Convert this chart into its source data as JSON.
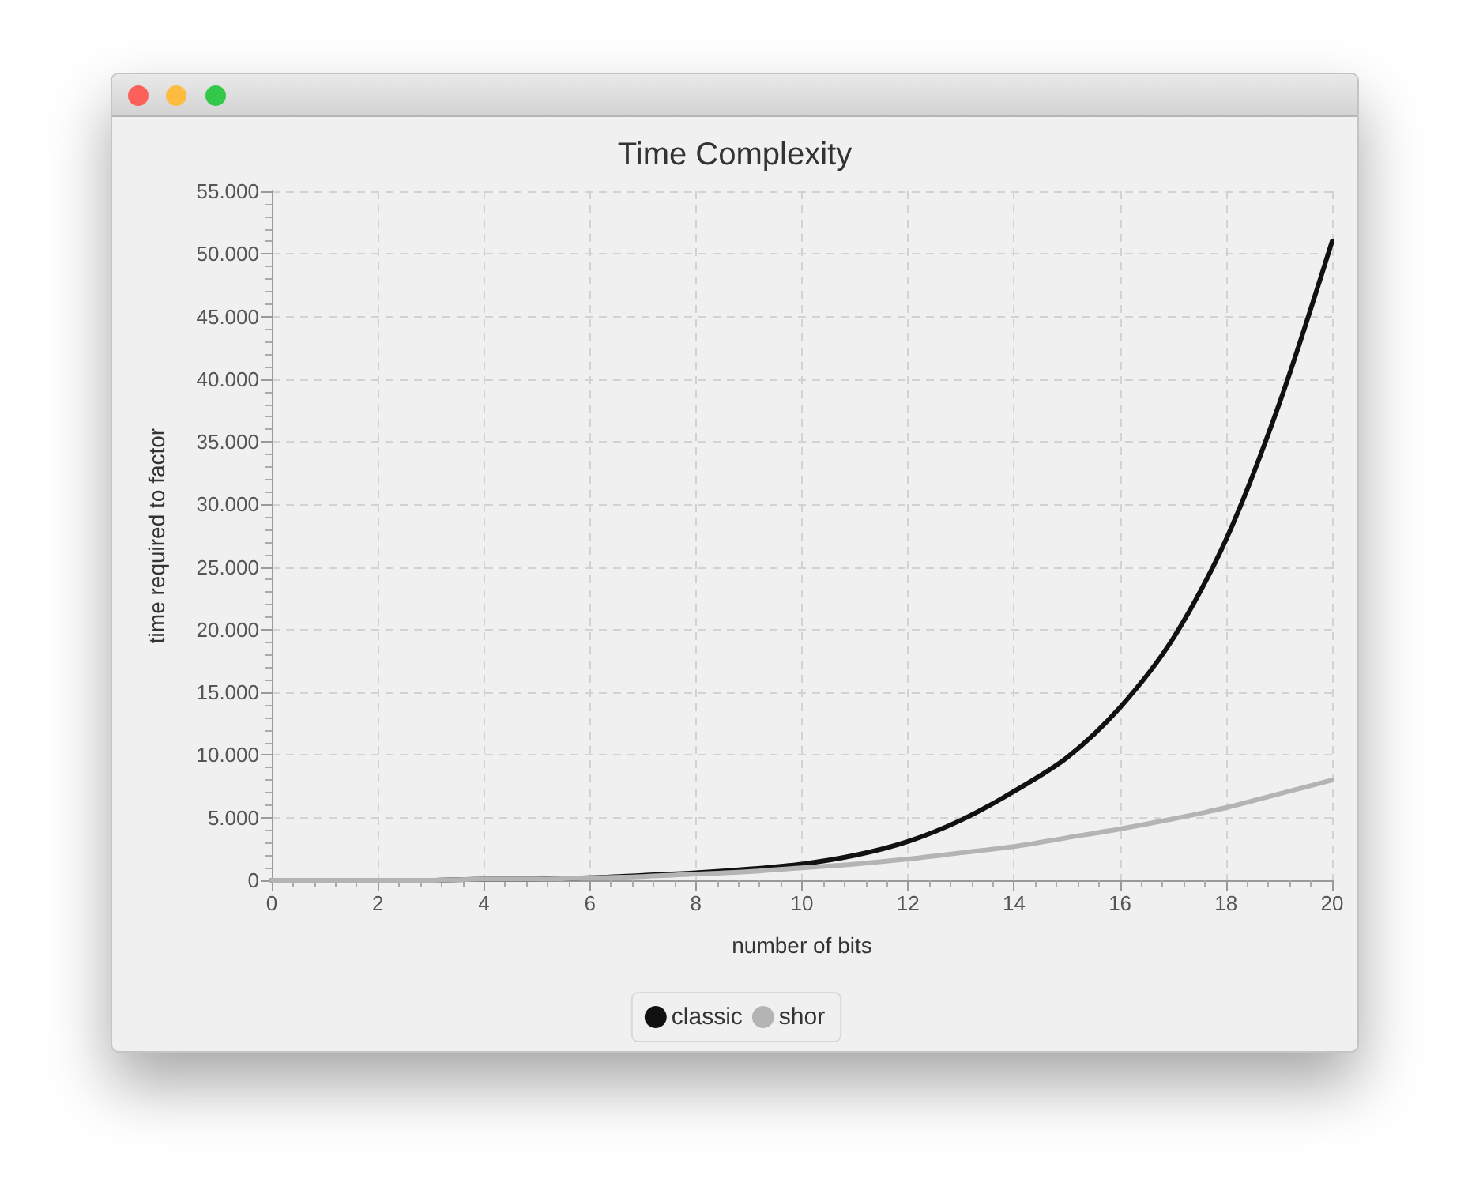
{
  "chart_data": {
    "type": "line",
    "title": "Time Complexity",
    "xlabel": "number of bits",
    "ylabel": "time required to factor",
    "x": [
      0,
      1,
      2,
      3,
      4,
      5,
      6,
      7,
      8,
      9,
      10,
      11,
      12,
      13,
      14,
      15,
      16,
      17,
      18,
      19,
      20
    ],
    "series": [
      {
        "name": "classic",
        "color": "#111111",
        "values": [
          0,
          0,
          0,
          0,
          100,
          100,
          200,
          400,
          600,
          900,
          1300,
          2000,
          3100,
          4800,
          7100,
          9800,
          13800,
          19300,
          27200,
          38000,
          51000
        ]
      },
      {
        "name": "shor",
        "color": "#b4b4b4",
        "values": [
          0,
          0,
          0,
          0,
          100,
          100,
          200,
          300,
          500,
          700,
          1000,
          1300,
          1700,
          2200,
          2700,
          3400,
          4100,
          4900,
          5800,
          6900,
          8000
        ]
      }
    ],
    "xlim": [
      0,
      20
    ],
    "xticks": [
      0,
      2,
      4,
      6,
      8,
      10,
      12,
      14,
      16,
      18,
      20
    ],
    "ylim": [
      0,
      55000
    ],
    "yticks": [
      {
        "value": 0,
        "label": "0"
      },
      {
        "value": 5000,
        "label": "5.000"
      },
      {
        "value": 10000,
        "label": "10.000"
      },
      {
        "value": 15000,
        "label": "15.000"
      },
      {
        "value": 20000,
        "label": "20.000"
      },
      {
        "value": 25000,
        "label": "25.000"
      },
      {
        "value": 30000,
        "label": "30.000"
      },
      {
        "value": 35000,
        "label": "35.000"
      },
      {
        "value": 40000,
        "label": "40.000"
      },
      {
        "value": 45000,
        "label": "45.000"
      },
      {
        "value": 50000,
        "label": "50.000"
      },
      {
        "value": 55000,
        "label": "55.000"
      }
    ],
    "grid": true,
    "legend": "bottom",
    "marker": "none"
  }
}
